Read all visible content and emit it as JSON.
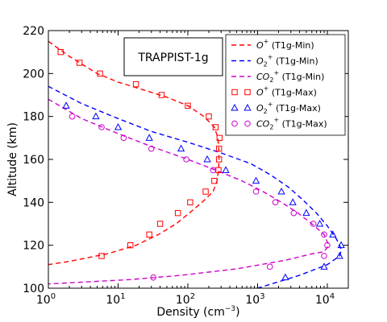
{
  "chart_data": {
    "type": "line",
    "xlabel_main": "Density (cm",
    "xlabel_exp": "−3",
    "xlabel_close": ")",
    "ylabel": "Altitude (km)",
    "x_scale": "log",
    "xlim": [
      1,
      20000
    ],
    "ylim": [
      100,
      220
    ],
    "x_ticks": [
      {
        "value": 1,
        "base": "10",
        "exp": "0"
      },
      {
        "value": 10,
        "base": "10",
        "exp": "1"
      },
      {
        "value": 100,
        "base": "10",
        "exp": "2"
      },
      {
        "value": 1000,
        "base": "10",
        "exp": "3"
      },
      {
        "value": 10000,
        "base": "10",
        "exp": "4"
      }
    ],
    "y_ticks": [
      "100",
      "120",
      "140",
      "160",
      "180",
      "200",
      "220"
    ],
    "annotation": "TRAPPIST-1g",
    "legend_position": "top-right",
    "series": [
      {
        "label_ion": "O",
        "label_charge": "+",
        "label_sub": "",
        "label_case": "(T1g-Min)",
        "color": "#ff0000",
        "style": "dashed",
        "points": [
          [
            1,
            215
          ],
          [
            2,
            208
          ],
          [
            5,
            200
          ],
          [
            10,
            196
          ],
          [
            20,
            193
          ],
          [
            50,
            189
          ],
          [
            100,
            185
          ],
          [
            170,
            180
          ],
          [
            240,
            175
          ],
          [
            270,
            170
          ],
          [
            278,
            165
          ],
          [
            280,
            160
          ],
          [
            275,
            155
          ],
          [
            262,
            150
          ],
          [
            230,
            145
          ],
          [
            160,
            140
          ],
          [
            105,
            135
          ],
          [
            68,
            130
          ],
          [
            38,
            125
          ],
          [
            18,
            120
          ],
          [
            7,
            116
          ],
          [
            2,
            112.5
          ],
          [
            1,
            111
          ]
        ]
      },
      {
        "label_ion": "O",
        "label_charge": "+",
        "label_sub": "2",
        "label_case": "(T1g-Min)",
        "color": "#0000ff",
        "style": "dashed",
        "points": [
          [
            1,
            194
          ],
          [
            3,
            186
          ],
          [
            10,
            179
          ],
          [
            30,
            173
          ],
          [
            100,
            168
          ],
          [
            300,
            163
          ],
          [
            800,
            158
          ],
          [
            1500,
            153
          ],
          [
            2800,
            147
          ],
          [
            4500,
            141
          ],
          [
            7000,
            135
          ],
          [
            10000,
            129
          ],
          [
            13500,
            123
          ],
          [
            16000,
            118
          ],
          [
            15000,
            115
          ],
          [
            10000,
            111
          ],
          [
            4000,
            106
          ],
          [
            1000,
            100
          ]
        ]
      },
      {
        "label_ion": "CO",
        "label_charge": "+",
        "label_sub": "2",
        "label_case": "(T1g-Min)",
        "color": "#cc00cc",
        "style": "dashed",
        "points": [
          [
            1,
            188
          ],
          [
            3,
            179
          ],
          [
            10,
            172
          ],
          [
            30,
            166
          ],
          [
            100,
            160
          ],
          [
            250,
            155
          ],
          [
            600,
            150
          ],
          [
            1200,
            145
          ],
          [
            2200,
            140
          ],
          [
            3800,
            135
          ],
          [
            6000,
            130
          ],
          [
            9000,
            125
          ],
          [
            10500,
            120
          ],
          [
            9000,
            117
          ],
          [
            6000,
            116
          ],
          [
            2500,
            113
          ],
          [
            500,
            109
          ],
          [
            80,
            106
          ],
          [
            15,
            104
          ],
          [
            1,
            102
          ]
        ]
      },
      {
        "label_ion": "O",
        "label_charge": "+",
        "label_sub": "",
        "label_case": "(T1g-Max)",
        "color": "#ff0000",
        "marker": "square",
        "points": [
          [
            1.5,
            210
          ],
          [
            2.8,
            205
          ],
          [
            5.5,
            200
          ],
          [
            18,
            195
          ],
          [
            42,
            190
          ],
          [
            100,
            185
          ],
          [
            200,
            180
          ],
          [
            250,
            175
          ],
          [
            285,
            170
          ],
          [
            280,
            165
          ],
          [
            280,
            160
          ],
          [
            275,
            155
          ],
          [
            240,
            150
          ],
          [
            180,
            145
          ],
          [
            108,
            140
          ],
          [
            72,
            135
          ],
          [
            40,
            130
          ],
          [
            28,
            125
          ],
          [
            15,
            120
          ],
          [
            5.8,
            115
          ]
        ]
      },
      {
        "label_ion": "O",
        "label_charge": "+",
        "label_sub": "2",
        "label_case": "(T1g-Max)",
        "color": "#0000ff",
        "marker": "triangle",
        "points": [
          [
            1.8,
            185
          ],
          [
            4.8,
            180
          ],
          [
            10,
            175
          ],
          [
            28,
            170
          ],
          [
            80,
            165
          ],
          [
            190,
            160
          ],
          [
            350,
            155
          ],
          [
            950,
            150
          ],
          [
            2200,
            145
          ],
          [
            3200,
            140
          ],
          [
            5000,
            135
          ],
          [
            7800,
            130
          ],
          [
            12000,
            125
          ],
          [
            15800,
            120
          ],
          [
            15000,
            115
          ],
          [
            9000,
            110
          ],
          [
            2500,
            105
          ]
        ]
      },
      {
        "label_ion": "CO",
        "label_charge": "+",
        "label_sub": "2",
        "label_case": "(T1g-Max)",
        "color": "#cc00cc",
        "marker": "circle",
        "points": [
          [
            2.2,
            180
          ],
          [
            5.8,
            175
          ],
          [
            12,
            170
          ],
          [
            30,
            165
          ],
          [
            95,
            160
          ],
          [
            230,
            155
          ],
          [
            950,
            145
          ],
          [
            1800,
            140
          ],
          [
            3300,
            135
          ],
          [
            6300,
            130
          ],
          [
            9000,
            125
          ],
          [
            10000,
            120
          ],
          [
            9000,
            115
          ],
          [
            1500,
            110
          ],
          [
            32,
            105
          ]
        ]
      }
    ]
  }
}
